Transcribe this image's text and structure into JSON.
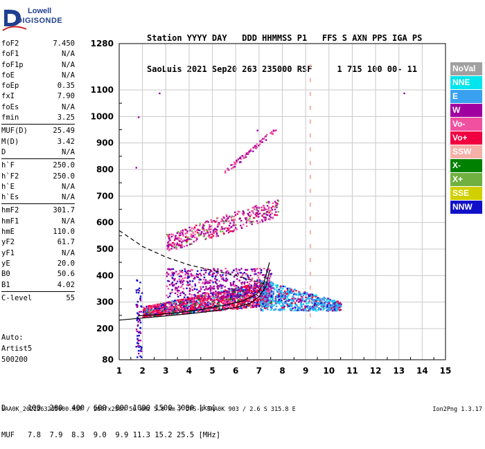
{
  "logo": {
    "line1": "Lowell",
    "line2": "DIGISONDE"
  },
  "header": {
    "line1": "Station YYYY DAY   DDD HHMMSS P1   FFS S AXN PPS IGA PS",
    "line2": "SaoLuis 2021 Sep20 263 235000 RSF     1 715 100 00- 11"
  },
  "params": {
    "group1": [
      {
        "label": "foF2",
        "value": "7.450"
      },
      {
        "label": "foF1",
        "value": "N/A"
      },
      {
        "label": "foF1p",
        "value": "N/A"
      },
      {
        "label": "foE",
        "value": "N/A"
      },
      {
        "label": "foEp",
        "value": "0.35"
      },
      {
        "label": "fxI",
        "value": "7.90"
      },
      {
        "label": "foEs",
        "value": "N/A"
      },
      {
        "label": "fmin",
        "value": "3.25"
      }
    ],
    "group2": [
      {
        "label": "MUF(D)",
        "value": "25.49"
      },
      {
        "label": "M(D)",
        "value": "3.42"
      },
      {
        "label": "D",
        "value": "N/A"
      }
    ],
    "group3": [
      {
        "label": "h`F",
        "value": "250.0"
      },
      {
        "label": "h`F2",
        "value": "250.0"
      },
      {
        "label": "h`E",
        "value": "N/A"
      },
      {
        "label": "h`Es",
        "value": "N/A"
      }
    ],
    "group4": [
      {
        "label": "hmF2",
        "value": "301.7"
      },
      {
        "label": "hmF1",
        "value": "N/A"
      },
      {
        "label": "hmE",
        "value": "110.0"
      },
      {
        "label": "yF2",
        "value": "61.7"
      },
      {
        "label": "yF1",
        "value": "N/A"
      },
      {
        "label": "yE",
        "value": "20.0"
      },
      {
        "label": "B0",
        "value": "50.6"
      },
      {
        "label": "B1",
        "value": "4.02"
      }
    ],
    "group5": [
      {
        "label": "C-level",
        "value": "55"
      }
    ]
  },
  "auto": {
    "line1": "Auto:",
    "line2": "Artist5",
    "line3": "500200"
  },
  "bottom_table": {
    "d_row": "D     100  200  400  600  800 1000 1500 3000 [km]",
    "muf_row": "MUF   7.8  7.9  8.3  9.0  9.9 11.3 15.2 25.5 [MHz]"
  },
  "footer": "SAA0K_2021263235000.RSF / 280fx256h 50 kHz 5.0 km / DPS-4 SAA0K 903 / 2.6 S 315.8 E",
  "version": "Ion2Png 1.3.17",
  "legend": [
    {
      "label": "NoVal",
      "color": "#a0a0a0"
    },
    {
      "label": "NNE",
      "color": "#00e5ee"
    },
    {
      "label": "E",
      "color": "#3aa0f0"
    },
    {
      "label": "W",
      "color": "#a000a0"
    },
    {
      "label": "Vo-",
      "color": "#f050a0"
    },
    {
      "label": "Vo+",
      "color": "#f00040"
    },
    {
      "label": "SSW",
      "color": "#f5b0a8"
    },
    {
      "label": "X-",
      "color": "#008000"
    },
    {
      "label": "X+",
      "color": "#70b040"
    },
    {
      "label": "SSE",
      "color": "#d0d000"
    },
    {
      "label": "NNW",
      "color": "#1010c8"
    }
  ],
  "chart_data": {
    "type": "scatter",
    "x_ticks": [
      1,
      2,
      3,
      4,
      5,
      6,
      7,
      8,
      9,
      10,
      11,
      12,
      13,
      14,
      15
    ],
    "y_ticks": [
      80,
      200,
      300,
      400,
      500,
      600,
      700,
      800,
      900,
      1000,
      1100,
      1280
    ],
    "xlim": [
      1,
      15
    ],
    "ylim": [
      80,
      1280
    ],
    "x_unit": "MHz",
    "y_unit": "km",
    "grid": true,
    "legend_position": "right",
    "profile_curve": [
      [
        1,
        232
      ],
      [
        2,
        240
      ],
      [
        3,
        248
      ],
      [
        4,
        256
      ],
      [
        5,
        266
      ],
      [
        6,
        280
      ],
      [
        6.6,
        295
      ],
      [
        7.0,
        320
      ],
      [
        7.3,
        360
      ],
      [
        7.45,
        420
      ]
    ],
    "trace_curve": [
      [
        1.8,
        248
      ],
      [
        2.5,
        252
      ],
      [
        3.5,
        260
      ],
      [
        4.5,
        272
      ],
      [
        5.5,
        288
      ],
      [
        6.3,
        304
      ],
      [
        6.9,
        330
      ],
      [
        7.2,
        370
      ],
      [
        7.45,
        450
      ]
    ],
    "dashed_curve": [
      [
        1,
        570
      ],
      [
        2,
        510
      ],
      [
        3,
        470
      ],
      [
        4,
        440
      ],
      [
        5,
        420
      ],
      [
        6,
        400
      ],
      [
        6.6,
        385
      ],
      [
        7.2,
        370
      ]
    ],
    "dashed_marker_freq": 9.2,
    "isolated_points": [
      [
        13.2,
        1090
      ],
      [
        2.7,
        1090
      ],
      [
        1.7,
        810
      ],
      [
        1.8,
        1000
      ],
      [
        6.9,
        950
      ]
    ]
  }
}
